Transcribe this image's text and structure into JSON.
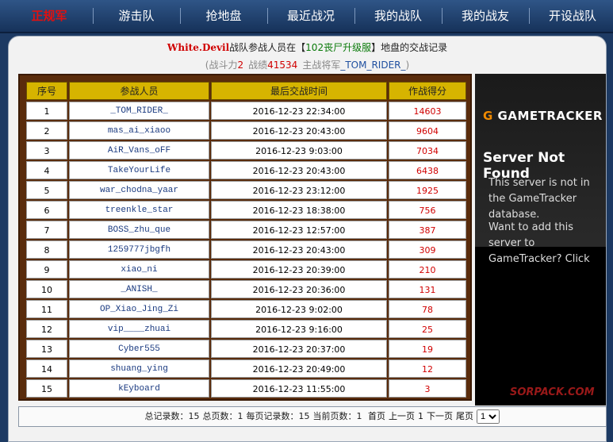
{
  "nav": [
    "正规军",
    "游击队",
    "抢地盘",
    "最近战况",
    "我的战队",
    "我的战友",
    "开设战队"
  ],
  "header": {
    "team": "White.Devil",
    "text_before_server": "战队参战人员在【",
    "server": "102丧尸升级服",
    "text_after_server": "】地盘的交战记录"
  },
  "summary": {
    "power_label": "(战斗力",
    "power": 2,
    "record_label": "战绩",
    "record": 41534,
    "general_label": "主战将军",
    "general": "_TOM_RIDER_",
    "close": ")"
  },
  "table": {
    "headers": [
      "序号",
      "参战人员",
      "最后交战时间",
      "作战得分"
    ],
    "rows": [
      [
        1,
        "_TOM_RIDER_",
        "2016-12-23 22:34:00",
        14603
      ],
      [
        2,
        "mas_ai_xiaoo",
        "2016-12-23 20:43:00",
        9604
      ],
      [
        3,
        "AiR_Vans_oFF",
        "2016-12-23 9:03:00",
        7034
      ],
      [
        4,
        "TakeYourLife",
        "2016-12-23 20:43:00",
        6438
      ],
      [
        5,
        "war_chodna_yaar",
        "2016-12-23 23:12:00",
        1925
      ],
      [
        6,
        "treenkle_star",
        "2016-12-23 18:38:00",
        756
      ],
      [
        7,
        "BOSS_zhu_que",
        "2016-12-23 12:57:00",
        387
      ],
      [
        8,
        "1259777jbgfh",
        "2016-12-23 20:43:00",
        309
      ],
      [
        9,
        "xiao_ni",
        "2016-12-23 20:39:00",
        210
      ],
      [
        10,
        "_ANISH_",
        "2016-12-23 20:36:00",
        131
      ],
      [
        11,
        "OP_Xiao_Jing_Zi",
        "2016-12-23 9:02:00",
        78
      ],
      [
        12,
        "vip____zhuai",
        "2016-12-23 9:16:00",
        25
      ],
      [
        13,
        "Cyber555",
        "2016-12-23 20:37:00",
        19
      ],
      [
        14,
        "shuang_ying",
        "2016-12-23 20:49:00",
        12
      ],
      [
        15,
        "kEyboard",
        "2016-12-23 11:55:00",
        3
      ]
    ]
  },
  "ad": {
    "logo_g": "G",
    "logo": "GAMETRACKER",
    "title": "Server Not Found",
    "message": "This server is not in the GameTracker database.",
    "prompt": "Want to add this server to GameTracker? Click"
  },
  "pagination": {
    "total_label": "总记录数：",
    "total": 15,
    "pages_label": "总页数：",
    "pages": 1,
    "per_page_label": "每页记录数：",
    "per_page": 15,
    "current_label": "当前页数：",
    "current": 1,
    "first": "首页",
    "prev": "上一页",
    "page_link": "1",
    "next": "下一页",
    "last": "尾页",
    "select": "1"
  },
  "watermark": "SORPACK.COM"
}
